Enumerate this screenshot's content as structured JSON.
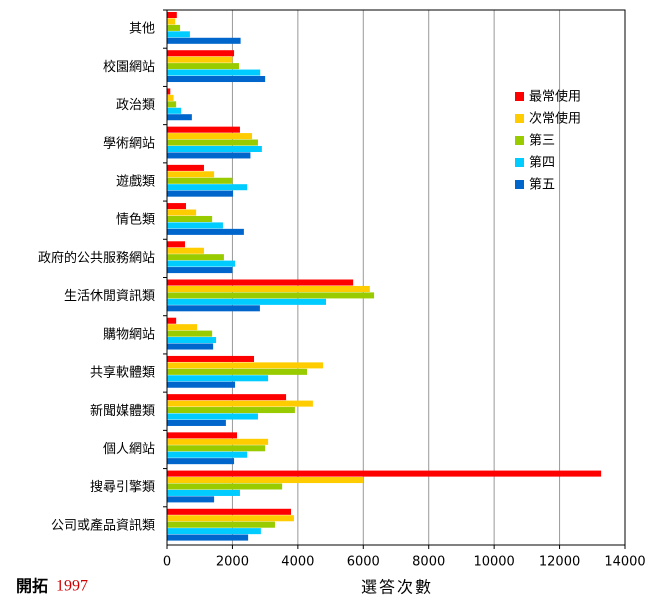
{
  "chart_data": {
    "type": "hbar",
    "x_label": "選答次數",
    "categories": [
      "其他",
      "校園網站",
      "政治類",
      "學術網站",
      "遊戲類",
      "情色類",
      "政府的公共服務網站",
      "生活休閒資訊類",
      "購物網站",
      "共享軟體類",
      "新聞媒體類",
      "個人網站",
      "搜尋引擎類",
      "公司或產品資訊類"
    ],
    "series": [
      {
        "name": "最常使用",
        "color": "#ff0000",
        "values": [
          300,
          2050,
          100,
          2230,
          1130,
          580,
          550,
          5690,
          280,
          2660,
          3640,
          2140,
          13270,
          3790
        ]
      },
      {
        "name": "次常使用",
        "color": "#ffcc00",
        "values": [
          250,
          2000,
          200,
          2600,
          1440,
          890,
          1130,
          6200,
          920,
          4770,
          4460,
          3090,
          5990,
          3880
        ]
      },
      {
        "name": "第三",
        "color": "#99cc00",
        "values": [
          400,
          2200,
          280,
          2780,
          2000,
          1380,
          1740,
          6330,
          1380,
          4280,
          3910,
          3000,
          3520,
          3300
        ]
      },
      {
        "name": "第四",
        "color": "#00ccff",
        "values": [
          700,
          2850,
          430,
          2900,
          2450,
          1710,
          2080,
          4860,
          1500,
          3090,
          2780,
          2450,
          2230,
          2870
        ]
      },
      {
        "name": "第五",
        "color": "#0066cc",
        "values": [
          2250,
          3000,
          760,
          2550,
          2020,
          2350,
          2000,
          2840,
          1410,
          2080,
          1800,
          2050,
          1440,
          2480
        ]
      }
    ],
    "xlim": [
      0,
      14000
    ],
    "xticks": [
      0,
      2000,
      4000,
      6000,
      8000,
      10000,
      12000,
      14000
    ],
    "grid": true,
    "legend": "upper right",
    "credit": {
      "name": "開拓",
      "year": "1997"
    }
  }
}
